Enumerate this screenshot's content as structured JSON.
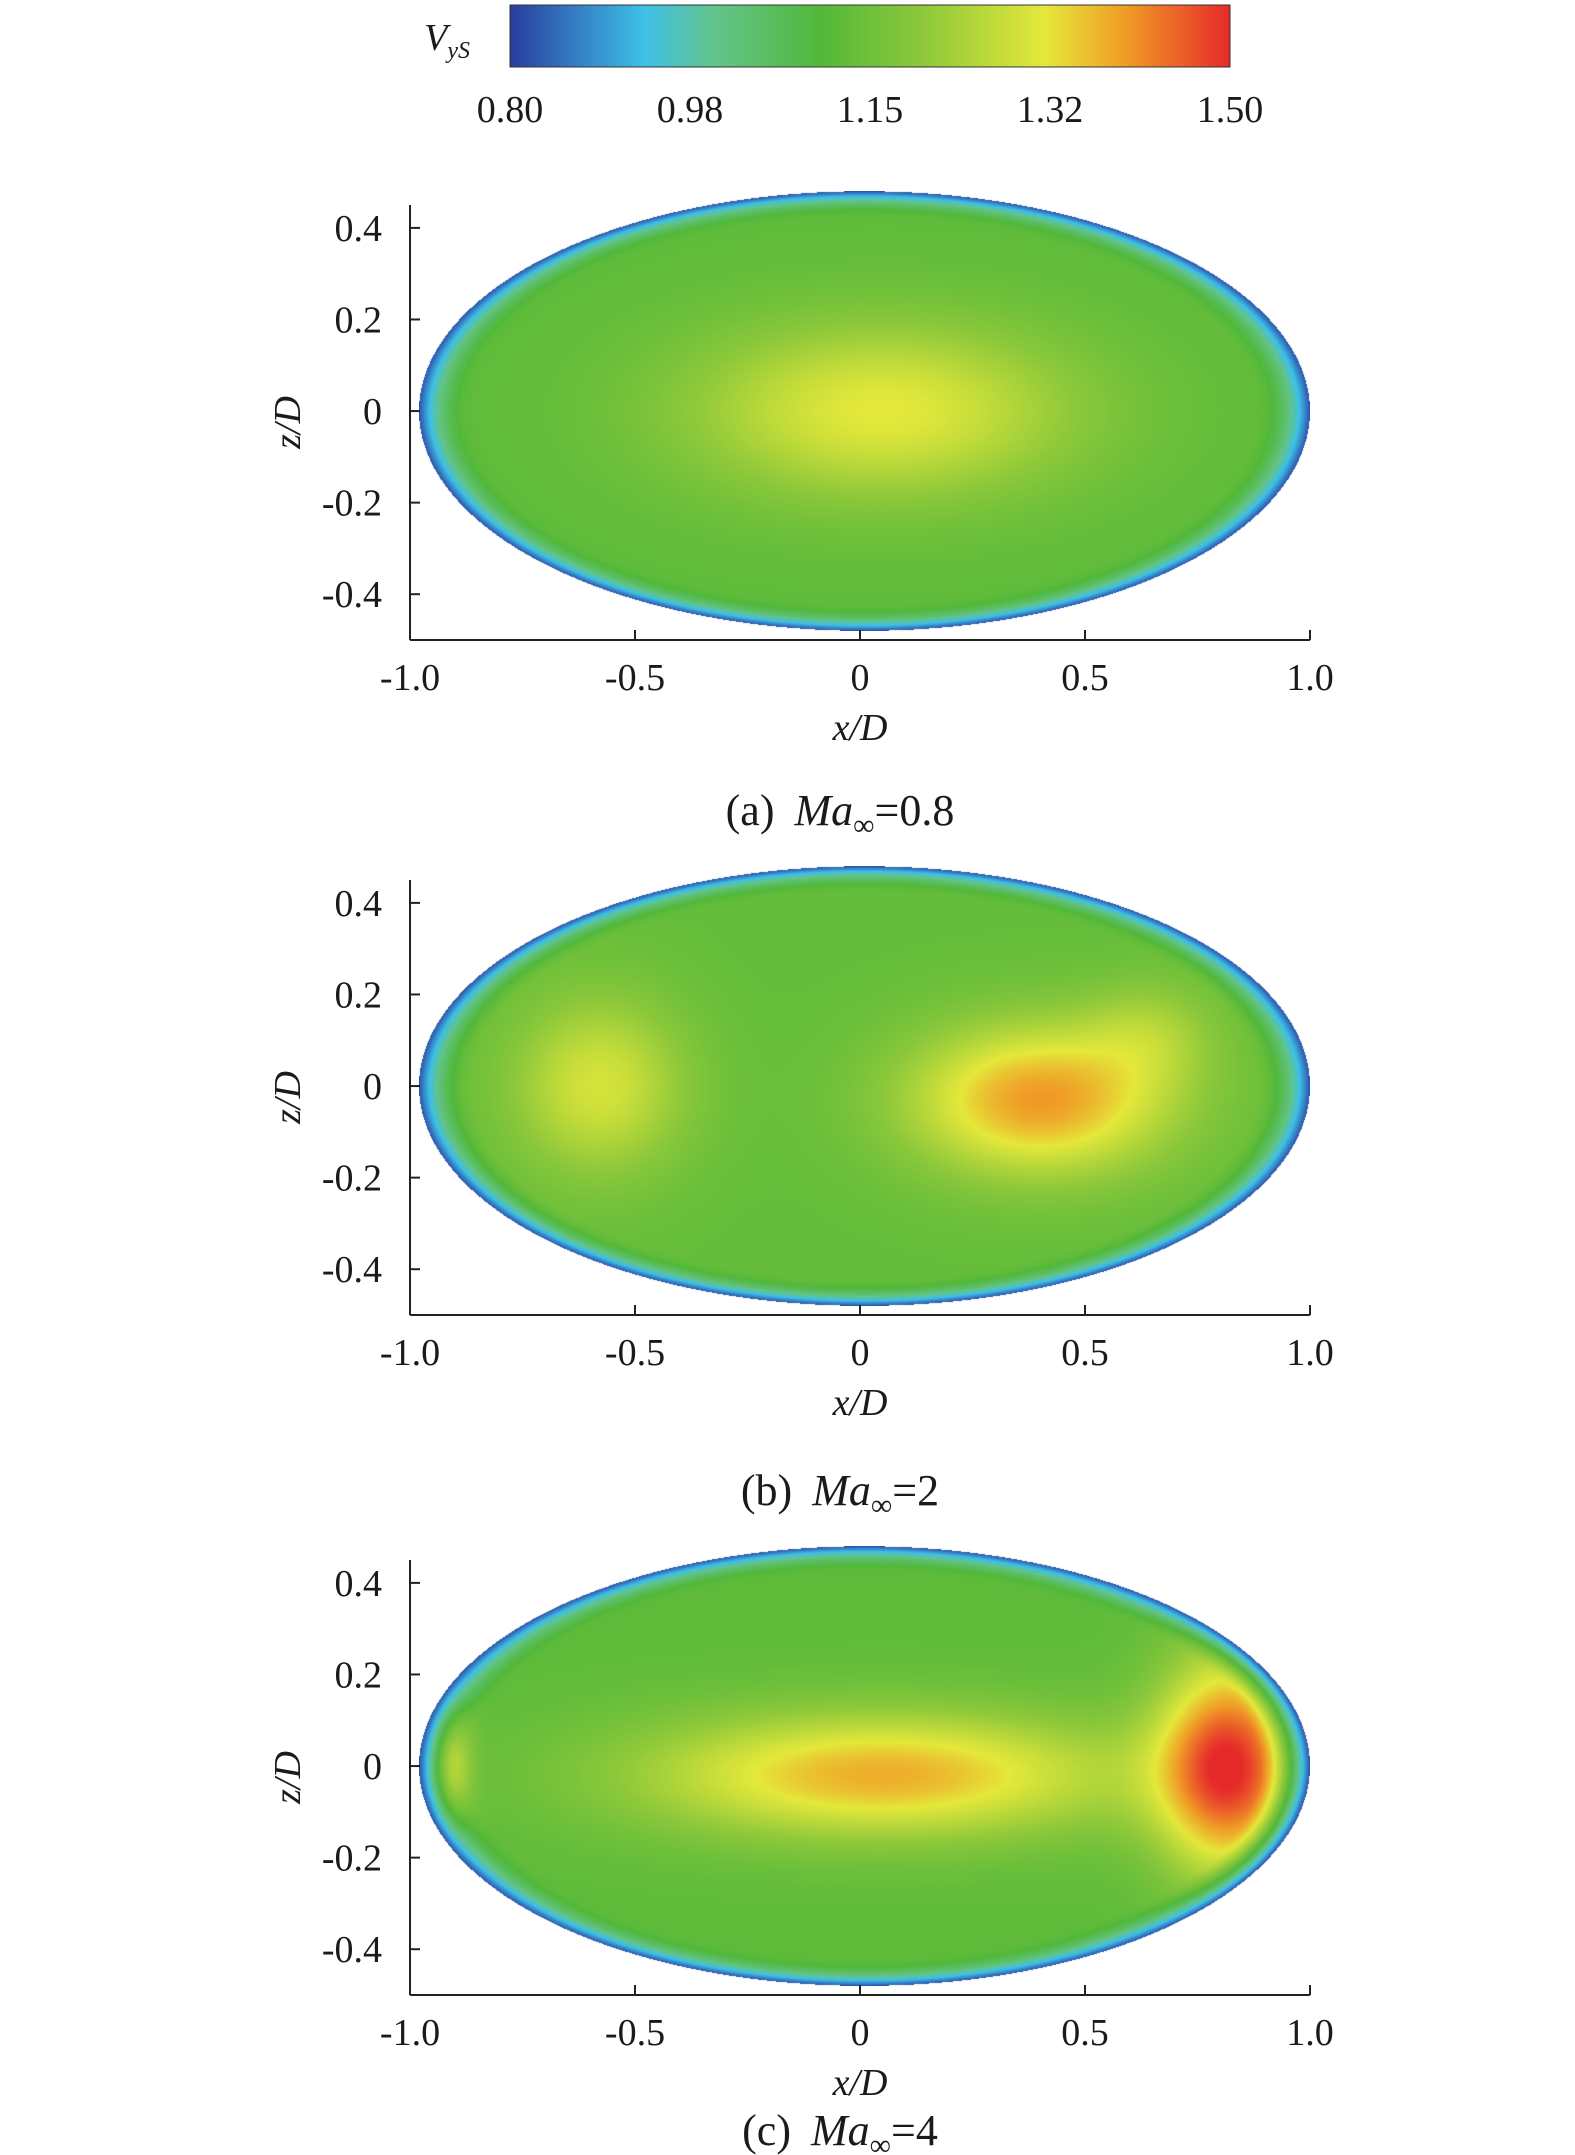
{
  "colorbar": {
    "variable": "V",
    "variable_sub": "yS",
    "tick_labels": [
      "0.80",
      "0.98",
      "1.15",
      "1.32",
      "1.50"
    ],
    "stops": [
      {
        "value": 0.8,
        "color": "#2a3d9e"
      },
      {
        "value": 0.93,
        "color": "#3ec0e8"
      },
      {
        "value": 1.0,
        "color": "#62c48a"
      },
      {
        "value": 1.1,
        "color": "#52b83a"
      },
      {
        "value": 1.2,
        "color": "#8cc83a"
      },
      {
        "value": 1.32,
        "color": "#e4e83a"
      },
      {
        "value": 1.4,
        "color": "#f09a26"
      },
      {
        "value": 1.5,
        "color": "#e62a2a"
      }
    ]
  },
  "chart_data": [
    {
      "type": "heatmap",
      "panel": "(a)",
      "caption_label": "(a)",
      "caption_var": "Ma",
      "caption_sub": "∞",
      "caption_value": "=0.8",
      "xlabel_var": "x",
      "xlabel_rest": "/D",
      "ylabel_var": "z",
      "ylabel_rest": "/D",
      "xlim": [
        -1.0,
        1.0
      ],
      "ylim": [
        -0.5,
        0.45
      ],
      "xticks": [
        "-1.0",
        "-0.5",
        "0",
        "0.5",
        "1.0"
      ],
      "yticks": [
        "0.4",
        "0.2",
        "0",
        "-0.2",
        "-0.4"
      ],
      "domain": {
        "shape": "ellipse",
        "x_range": [
          -0.98,
          1.0
        ],
        "z_range": [
          -0.48,
          0.48
        ]
      },
      "field": {
        "base": 1.12,
        "rim": 0.82,
        "blobs": [
          {
            "x": 0.05,
            "z": 0.0,
            "sx": 0.45,
            "sz": 0.2,
            "v": 0.2
          }
        ]
      }
    },
    {
      "type": "heatmap",
      "panel": "(b)",
      "caption_label": "(b)",
      "caption_var": "Ma",
      "caption_sub": "∞",
      "caption_value": "=2",
      "xlabel_var": "x",
      "xlabel_rest": "/D",
      "ylabel_var": "z",
      "ylabel_rest": "/D",
      "xlim": [
        -1.0,
        1.0
      ],
      "ylim": [
        -0.5,
        0.45
      ],
      "xticks": [
        "-1.0",
        "-0.5",
        "0",
        "0.5",
        "1.0"
      ],
      "yticks": [
        "0.4",
        "0.2",
        "0",
        "-0.2",
        "-0.4"
      ],
      "domain": {
        "shape": "ellipse",
        "x_range": [
          -0.98,
          1.0
        ],
        "z_range": [
          -0.48,
          0.48
        ]
      },
      "field": {
        "base": 1.13,
        "rim": 0.82,
        "blobs": [
          {
            "x": -0.58,
            "z": 0.0,
            "sx": 0.2,
            "sz": 0.2,
            "v": 0.17
          },
          {
            "x": 0.4,
            "z": -0.03,
            "sx": 0.3,
            "sz": 0.17,
            "v": 0.27
          },
          {
            "x": 0.65,
            "z": 0.12,
            "sx": 0.15,
            "sz": 0.12,
            "v": 0.08
          }
        ]
      }
    },
    {
      "type": "heatmap",
      "panel": "(c)",
      "caption_label": "(c)",
      "caption_var": "Ma",
      "caption_sub": "∞",
      "caption_value": "=4",
      "xlabel_var": "x",
      "xlabel_rest": "/D",
      "ylabel_var": "z",
      "ylabel_rest": "/D",
      "xlim": [
        -1.0,
        1.0
      ],
      "ylim": [
        -0.5,
        0.45
      ],
      "xticks": [
        "-1.0",
        "-0.5",
        "0",
        "0.5",
        "1.0"
      ],
      "yticks": [
        "0.4",
        "0.2",
        "0",
        "-0.2",
        "-0.4"
      ],
      "domain": {
        "shape": "ellipse",
        "x_range": [
          -0.98,
          1.0
        ],
        "z_range": [
          -0.48,
          0.48
        ]
      },
      "field": {
        "base": 1.12,
        "rim": 0.82,
        "blobs": [
          {
            "x": 0.05,
            "z": -0.02,
            "sx": 0.55,
            "sz": 0.14,
            "v": 0.26
          },
          {
            "x": 0.82,
            "z": 0.0,
            "sx": 0.16,
            "sz": 0.24,
            "v": 0.36
          },
          {
            "x": -0.92,
            "z": 0.0,
            "sx": 0.05,
            "sz": 0.15,
            "v": 0.2
          }
        ]
      }
    }
  ]
}
